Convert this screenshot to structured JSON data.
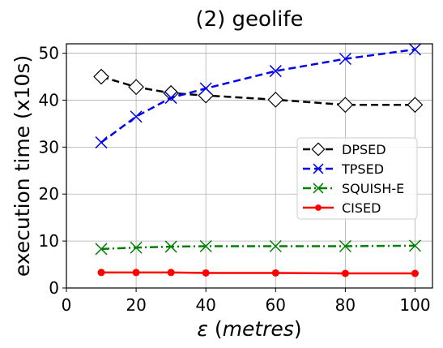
{
  "chart_data": {
    "type": "line",
    "title": "(2) geolife",
    "xlabel": "ε (metres)",
    "xlabel_symbol": "ε",
    "xlabel_unit": "(metres)",
    "ylabel": "execution time (x10s)",
    "xlim": [
      0,
      105
    ],
    "ylim": [
      0,
      52
    ],
    "xticks": [
      0,
      20,
      40,
      60,
      80,
      100
    ],
    "yticks": [
      0,
      10,
      20,
      30,
      40,
      50
    ],
    "grid": true,
    "legend_position": "center-right",
    "x": [
      10,
      20,
      30,
      40,
      60,
      80,
      100
    ],
    "series": [
      {
        "name": "DPSED",
        "color": "#000000",
        "marker": "diamond",
        "dash": "dashed",
        "values": [
          45,
          42.8,
          41.5,
          41,
          40.1,
          39,
          39
        ]
      },
      {
        "name": "TPSED",
        "color": "#0000ee",
        "marker": "x",
        "dash": "dashed",
        "values": [
          31,
          36.5,
          40.5,
          42.5,
          46.2,
          48.8,
          50.8
        ]
      },
      {
        "name": "SQUISH-E",
        "color": "#008000",
        "marker": "x",
        "dash": "dashdot",
        "values": [
          8.3,
          8.6,
          8.8,
          8.9,
          8.9,
          8.9,
          9.0
        ]
      },
      {
        "name": "CISED",
        "color": "#ff0000",
        "marker": "dot",
        "dash": "solid",
        "values": [
          3.3,
          3.3,
          3.3,
          3.2,
          3.2,
          3.1,
          3.1
        ]
      }
    ]
  }
}
